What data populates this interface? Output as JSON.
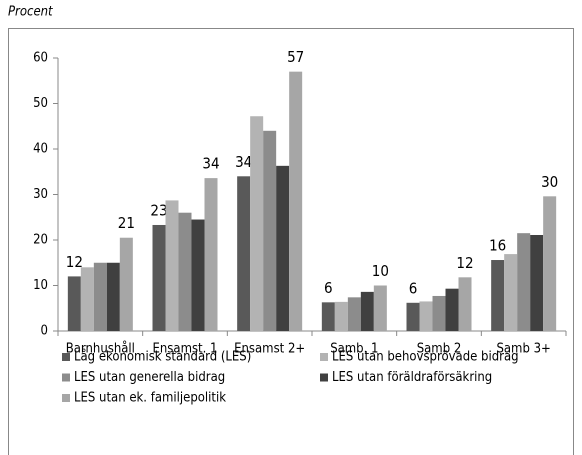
{
  "chart_data": {
    "type": "bar",
    "ylabel": "Procent",
    "categories": [
      "Barnhushåll",
      "Ensamst. 1",
      "Ensamst 2+",
      "Samb. 1",
      "Samb 2",
      "Samb 3+"
    ],
    "series": [
      {
        "name": "Låg ekonomisk standard (LES)",
        "color": "#595959",
        "values": [
          12,
          23.3,
          34,
          6.3,
          6.2,
          15.6
        ],
        "value_labels": [
          "12",
          "23",
          "34",
          "6",
          "6",
          "16"
        ]
      },
      {
        "name": "LES utan behovsprövade bidrag",
        "color": "#b3b3b3",
        "values": [
          14,
          28.7,
          47.2,
          6.4,
          6.5,
          16.9
        ]
      },
      {
        "name": "LES utan generella bidrag",
        "color": "#8c8c8c",
        "values": [
          15,
          26,
          44,
          7.4,
          7.7,
          21.5
        ]
      },
      {
        "name": "LES utan föräldraförsäkring",
        "color": "#404040",
        "values": [
          15,
          24.5,
          36.3,
          8.6,
          9.3,
          21.1
        ]
      },
      {
        "name": "LES utan ek. familjepolitik",
        "color": "#a6a6a6",
        "values": [
          20.5,
          33.6,
          57,
          10,
          11.8,
          29.6
        ],
        "value_labels": [
          "21",
          "34",
          "57",
          "10",
          "12",
          "30"
        ]
      }
    ],
    "ylim": [
      0,
      60
    ],
    "yticks": [
      0,
      10,
      20,
      30,
      40,
      50,
      60
    ],
    "grid": false
  }
}
